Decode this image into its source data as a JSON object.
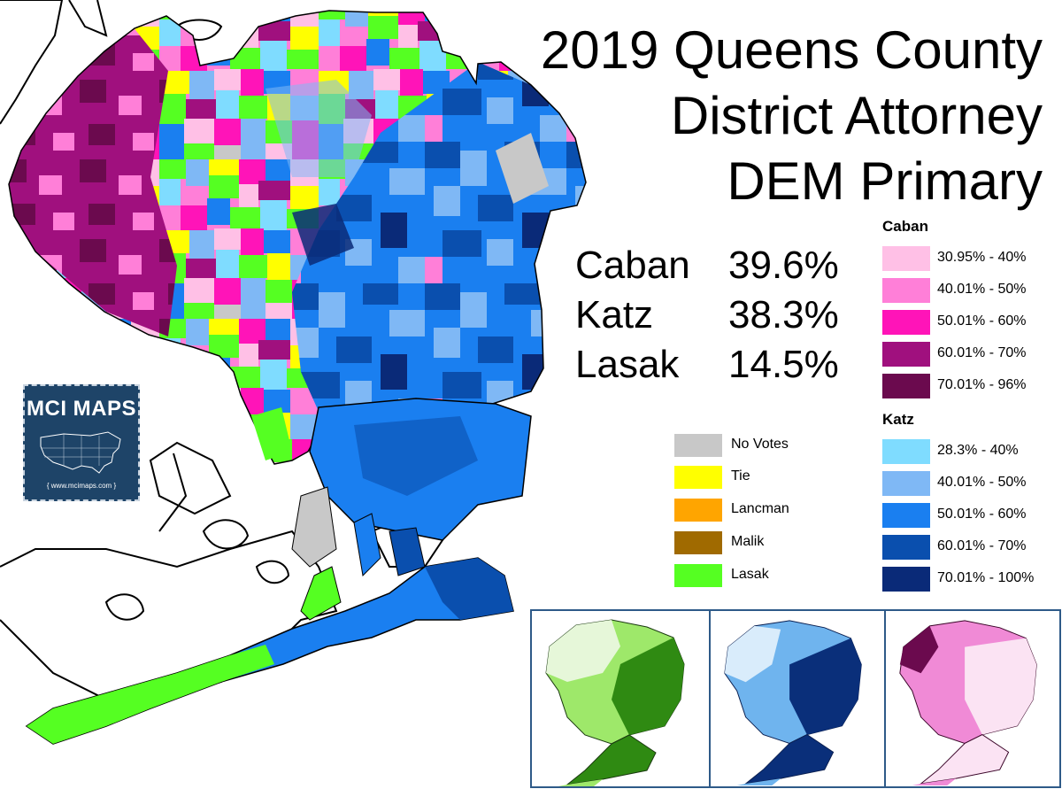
{
  "title": {
    "line1": "2019 Queens County",
    "line2": "District Attorney",
    "line3": "DEM Primary"
  },
  "results": [
    {
      "candidate": "Caban",
      "percent": "39.6%"
    },
    {
      "candidate": "Katz",
      "percent": "38.3%"
    },
    {
      "candidate": "Lasak",
      "percent": "14.5%"
    }
  ],
  "legend": {
    "caban": {
      "heading": "Caban",
      "items": [
        {
          "label": "30.95% - 40%",
          "color": "#ffc0e6"
        },
        {
          "label": "40.01% - 50%",
          "color": "#ff7fd8"
        },
        {
          "label": "50.01% - 60%",
          "color": "#ff14b8"
        },
        {
          "label": "60.01% - 70%",
          "color": "#a0107e"
        },
        {
          "label": "70.01% - 96%",
          "color": "#6b0a4e"
        }
      ]
    },
    "katz": {
      "heading": "Katz",
      "items": [
        {
          "label": "28.3% - 40%",
          "color": "#7fdcff"
        },
        {
          "label": "40.01% - 50%",
          "color": "#7fb8f5"
        },
        {
          "label": "50.01% - 60%",
          "color": "#1a7ff0"
        },
        {
          "label": "60.01% - 70%",
          "color": "#0a4fae"
        },
        {
          "label": "70.01% - 100%",
          "color": "#0a2a78"
        }
      ]
    },
    "other": [
      {
        "label": "No Votes",
        "color": "#c8c8c8"
      },
      {
        "label": "Tie",
        "color": "#ffff00"
      },
      {
        "label": "Lancman",
        "color": "#ffa500"
      },
      {
        "label": "Malik",
        "color": "#a06a00"
      },
      {
        "label": "Lasak",
        "color": "#55ff22"
      }
    ]
  },
  "logo": {
    "text": "MCI MAPS",
    "url": "{ www.mcimaps.com }"
  },
  "insets": [
    {
      "name": "lasak",
      "base": "#e6f7d9",
      "light": "#9ee86a",
      "dark": "#2f8a12"
    },
    {
      "name": "katz",
      "base": "#d9ecfb",
      "light": "#6fb4ee",
      "dark": "#0a2f7a"
    },
    {
      "name": "caban",
      "base": "#fbe3f3",
      "light": "#f08ad6",
      "dark": "#6b0a4e"
    }
  ]
}
